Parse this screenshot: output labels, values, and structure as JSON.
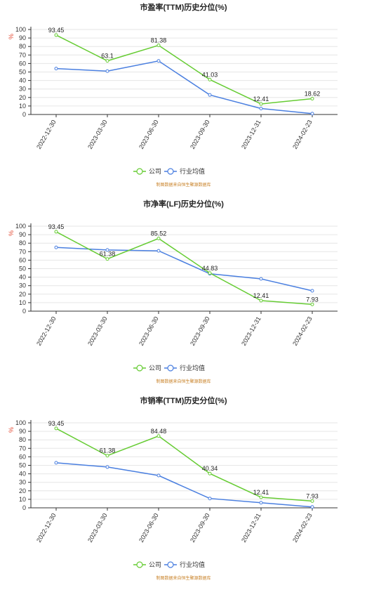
{
  "colors": {
    "company": "#66cc33",
    "industry": "#4a7fe0",
    "grid": "#e6e6e6",
    "axis": "#333333",
    "source": "#c9832a"
  },
  "legend": {
    "company": "公司",
    "industry": "行业均值"
  },
  "source_note": "制图数据来自恒生聚源数据库",
  "unit_label": "%",
  "chart_data": [
    {
      "type": "line",
      "title": "市盈率(TTM)历史分位(%)",
      "x": [
        "2022-12-30",
        "2023-03-30",
        "2023-06-30",
        "2023-09-30",
        "2023-12-31",
        "2024-02-23"
      ],
      "ylim": [
        0,
        100
      ],
      "yticks": [
        0,
        10,
        20,
        30,
        40,
        50,
        60,
        70,
        80,
        90,
        100
      ],
      "grid": true,
      "legend_position": "bottom",
      "series": [
        {
          "name": "公司",
          "values": [
            93.45,
            63.1,
            81.38,
            41.03,
            12.41,
            18.62
          ],
          "labels": [
            "93.45",
            "63.1",
            "81.38",
            "41.03",
            "12.41",
            "18.62"
          ]
        },
        {
          "name": "行业均值",
          "values": [
            54,
            51,
            63,
            23,
            7,
            1
          ]
        }
      ]
    },
    {
      "type": "line",
      "title": "市净率(LF)历史分位(%)",
      "x": [
        "2022-12-30",
        "2023-03-30",
        "2023-06-30",
        "2023-09-30",
        "2023-12-31",
        "2024-02-23"
      ],
      "ylim": [
        0,
        100
      ],
      "yticks": [
        0,
        10,
        20,
        30,
        40,
        50,
        60,
        70,
        80,
        90,
        100
      ],
      "grid": true,
      "legend_position": "bottom",
      "series": [
        {
          "name": "公司",
          "values": [
            93.45,
            61.38,
            85.52,
            44.83,
            12.41,
            7.93
          ],
          "labels": [
            "93.45",
            "61.38",
            "85.52",
            "44.83",
            "12.41",
            "7.93"
          ]
        },
        {
          "name": "行业均值",
          "values": [
            75,
            72,
            71,
            44,
            38,
            24
          ]
        }
      ]
    },
    {
      "type": "line",
      "title": "市销率(TTM)历史分位(%)",
      "x": [
        "2022-12-30",
        "2023-03-30",
        "2023-06-30",
        "2023-09-30",
        "2023-12-31",
        "2024-02-23"
      ],
      "ylim": [
        0,
        100
      ],
      "yticks": [
        0,
        10,
        20,
        30,
        40,
        50,
        60,
        70,
        80,
        90,
        100
      ],
      "grid": true,
      "legend_position": "bottom",
      "series": [
        {
          "name": "公司",
          "values": [
            93.45,
            61.38,
            84.48,
            40.34,
            12.41,
            7.93
          ],
          "labels": [
            "93.45",
            "61.38",
            "84.48",
            "40.34",
            "12.41",
            "7.93"
          ]
        },
        {
          "name": "行业均值",
          "values": [
            53,
            48,
            38,
            11,
            6,
            1
          ]
        }
      ]
    }
  ]
}
